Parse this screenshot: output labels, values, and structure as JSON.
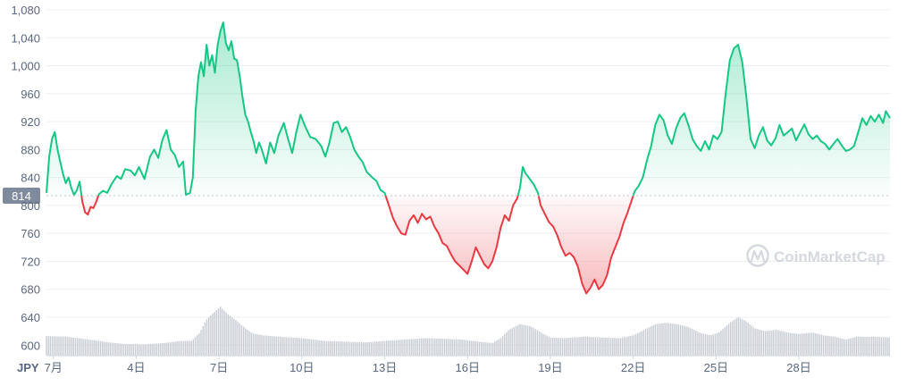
{
  "chart_data": {
    "type": "area",
    "title": "",
    "xlabel": "JPY",
    "ylabel": "",
    "ylim": [
      585,
      1080
    ],
    "yticks": [
      "1,080",
      "1,040",
      "1,000",
      "960",
      "920",
      "880",
      "840",
      "800",
      "760",
      "720",
      "680",
      "640",
      "600"
    ],
    "ytick_values": [
      1080,
      1040,
      1000,
      960,
      920,
      880,
      840,
      800,
      760,
      720,
      680,
      640,
      600
    ],
    "xlim": [
      0.75,
      31.3
    ],
    "xtick_labels": [
      "7月",
      "4日",
      "7日",
      "10日",
      "13日",
      "16日",
      "19日",
      "22日",
      "25日",
      "28日"
    ],
    "xtick_values": [
      1,
      4,
      7,
      10,
      13,
      16,
      19,
      22,
      25,
      28
    ],
    "baseline_value": 814,
    "baseline_label": "814",
    "grid": true,
    "colors": {
      "up": "#16c784",
      "down": "#ea3943",
      "volume": "#c7cbd3",
      "grid": "#eeeff2",
      "text": "#58667e",
      "baseline_badge": "#808a9d"
    },
    "price_series": {
      "name": "",
      "points": [
        [
          0.75,
          818
        ],
        [
          0.85,
          870
        ],
        [
          0.95,
          895
        ],
        [
          1.05,
          905
        ],
        [
          1.15,
          880
        ],
        [
          1.25,
          862
        ],
        [
          1.35,
          845
        ],
        [
          1.45,
          832
        ],
        [
          1.55,
          840
        ],
        [
          1.65,
          825
        ],
        [
          1.75,
          815
        ],
        [
          1.85,
          822
        ],
        [
          1.95,
          834
        ],
        [
          2.05,
          805
        ],
        [
          2.15,
          790
        ],
        [
          2.25,
          787
        ],
        [
          2.35,
          798
        ],
        [
          2.45,
          796
        ],
        [
          2.55,
          805
        ],
        [
          2.65,
          816
        ],
        [
          2.8,
          821
        ],
        [
          2.95,
          818
        ],
        [
          3.1,
          830
        ],
        [
          3.3,
          842
        ],
        [
          3.45,
          838
        ],
        [
          3.6,
          852
        ],
        [
          3.8,
          850
        ],
        [
          3.95,
          843
        ],
        [
          4.1,
          855
        ],
        [
          4.3,
          838
        ],
        [
          4.5,
          870
        ],
        [
          4.65,
          880
        ],
        [
          4.8,
          868
        ],
        [
          4.95,
          894
        ],
        [
          5.1,
          908
        ],
        [
          5.25,
          880
        ],
        [
          5.4,
          872
        ],
        [
          5.55,
          855
        ],
        [
          5.7,
          863
        ],
        [
          5.8,
          815
        ],
        [
          5.95,
          818
        ],
        [
          6.05,
          840
        ],
        [
          6.15,
          935
        ],
        [
          6.25,
          985
        ],
        [
          6.35,
          1005
        ],
        [
          6.45,
          985
        ],
        [
          6.55,
          1030
        ],
        [
          6.65,
          1000
        ],
        [
          6.75,
          1015
        ],
        [
          6.85,
          990
        ],
        [
          6.95,
          1030
        ],
        [
          7.05,
          1050
        ],
        [
          7.15,
          1062
        ],
        [
          7.25,
          1032
        ],
        [
          7.35,
          1022
        ],
        [
          7.45,
          1035
        ],
        [
          7.55,
          1010
        ],
        [
          7.65,
          1008
        ],
        [
          7.75,
          985
        ],
        [
          7.85,
          955
        ],
        [
          7.95,
          930
        ],
        [
          8.05,
          920
        ],
        [
          8.15,
          905
        ],
        [
          8.25,
          892
        ],
        [
          8.35,
          875
        ],
        [
          8.45,
          890
        ],
        [
          8.55,
          880
        ],
        [
          8.7,
          860
        ],
        [
          8.85,
          890
        ],
        [
          9.0,
          875
        ],
        [
          9.15,
          900
        ],
        [
          9.35,
          918
        ],
        [
          9.5,
          895
        ],
        [
          9.65,
          875
        ],
        [
          9.8,
          905
        ],
        [
          9.95,
          930
        ],
        [
          10.1,
          915
        ],
        [
          10.3,
          898
        ],
        [
          10.5,
          895
        ],
        [
          10.7,
          885
        ],
        [
          10.85,
          870
        ],
        [
          11.0,
          890
        ],
        [
          11.15,
          918
        ],
        [
          11.3,
          920
        ],
        [
          11.45,
          905
        ],
        [
          11.6,
          912
        ],
        [
          11.75,
          898
        ],
        [
          11.9,
          880
        ],
        [
          12.05,
          870
        ],
        [
          12.2,
          862
        ],
        [
          12.35,
          848
        ],
        [
          12.55,
          840
        ],
        [
          12.7,
          835
        ],
        [
          12.85,
          822
        ],
        [
          13.0,
          818
        ],
        [
          13.15,
          800
        ],
        [
          13.3,
          782
        ],
        [
          13.45,
          770
        ],
        [
          13.6,
          760
        ],
        [
          13.75,
          758
        ],
        [
          13.9,
          778
        ],
        [
          14.05,
          786
        ],
        [
          14.2,
          775
        ],
        [
          14.35,
          788
        ],
        [
          14.5,
          780
        ],
        [
          14.65,
          784
        ],
        [
          14.8,
          770
        ],
        [
          14.95,
          760
        ],
        [
          15.1,
          746
        ],
        [
          15.25,
          742
        ],
        [
          15.4,
          730
        ],
        [
          15.55,
          720
        ],
        [
          15.7,
          714
        ],
        [
          15.85,
          708
        ],
        [
          16.0,
          702
        ],
        [
          16.15,
          720
        ],
        [
          16.3,
          740
        ],
        [
          16.45,
          728
        ],
        [
          16.6,
          716
        ],
        [
          16.75,
          710
        ],
        [
          16.9,
          720
        ],
        [
          17.05,
          740
        ],
        [
          17.2,
          768
        ],
        [
          17.35,
          786
        ],
        [
          17.5,
          778
        ],
        [
          17.65,
          800
        ],
        [
          17.8,
          810
        ],
        [
          17.9,
          825
        ],
        [
          18.0,
          855
        ],
        [
          18.1,
          846
        ],
        [
          18.25,
          838
        ],
        [
          18.4,
          830
        ],
        [
          18.55,
          818
        ],
        [
          18.65,
          800
        ],
        [
          18.8,
          788
        ],
        [
          18.95,
          776
        ],
        [
          19.1,
          770
        ],
        [
          19.25,
          757
        ],
        [
          19.4,
          740
        ],
        [
          19.55,
          728
        ],
        [
          19.7,
          732
        ],
        [
          19.85,
          726
        ],
        [
          20.0,
          712
        ],
        [
          20.15,
          688
        ],
        [
          20.3,
          674
        ],
        [
          20.45,
          682
        ],
        [
          20.6,
          694
        ],
        [
          20.75,
          680
        ],
        [
          20.9,
          686
        ],
        [
          21.05,
          700
        ],
        [
          21.2,
          725
        ],
        [
          21.35,
          740
        ],
        [
          21.5,
          755
        ],
        [
          21.65,
          775
        ],
        [
          21.8,
          790
        ],
        [
          21.95,
          808
        ],
        [
          22.05,
          820
        ],
        [
          22.2,
          828
        ],
        [
          22.35,
          840
        ],
        [
          22.5,
          865
        ],
        [
          22.65,
          885
        ],
        [
          22.8,
          915
        ],
        [
          22.95,
          930
        ],
        [
          23.1,
          922
        ],
        [
          23.25,
          900
        ],
        [
          23.4,
          888
        ],
        [
          23.55,
          910
        ],
        [
          23.7,
          925
        ],
        [
          23.85,
          932
        ],
        [
          24.0,
          915
        ],
        [
          24.15,
          895
        ],
        [
          24.3,
          885
        ],
        [
          24.45,
          878
        ],
        [
          24.6,
          892
        ],
        [
          24.75,
          880
        ],
        [
          24.9,
          900
        ],
        [
          25.05,
          895
        ],
        [
          25.2,
          905
        ],
        [
          25.35,
          960
        ],
        [
          25.5,
          1008
        ],
        [
          25.65,
          1025
        ],
        [
          25.8,
          1030
        ],
        [
          25.95,
          1005
        ],
        [
          26.1,
          955
        ],
        [
          26.25,
          895
        ],
        [
          26.4,
          882
        ],
        [
          26.55,
          900
        ],
        [
          26.7,
          912
        ],
        [
          26.85,
          893
        ],
        [
          27.0,
          886
        ],
        [
          27.15,
          896
        ],
        [
          27.3,
          915
        ],
        [
          27.45,
          900
        ],
        [
          27.6,
          905
        ],
        [
          27.75,
          910
        ],
        [
          27.9,
          893
        ],
        [
          28.05,
          905
        ],
        [
          28.2,
          916
        ],
        [
          28.35,
          902
        ],
        [
          28.5,
          895
        ],
        [
          28.65,
          900
        ],
        [
          28.8,
          892
        ],
        [
          28.95,
          888
        ],
        [
          29.1,
          880
        ],
        [
          29.25,
          888
        ],
        [
          29.4,
          895
        ],
        [
          29.55,
          886
        ],
        [
          29.7,
          878
        ],
        [
          29.85,
          880
        ],
        [
          30.0,
          885
        ],
        [
          30.15,
          905
        ],
        [
          30.3,
          925
        ],
        [
          30.45,
          915
        ],
        [
          30.6,
          928
        ],
        [
          30.75,
          920
        ],
        [
          30.9,
          930
        ],
        [
          31.05,
          918
        ],
        [
          31.15,
          935
        ],
        [
          31.3,
          925
        ]
      ]
    },
    "volume_series": {
      "name": "",
      "points": [
        [
          0.75,
          613
        ],
        [
          1.5,
          612
        ],
        [
          2.5,
          607
        ],
        [
          3.0,
          604
        ],
        [
          3.5,
          602
        ],
        [
          4.2,
          601
        ],
        [
          5.0,
          603
        ],
        [
          5.6,
          606
        ],
        [
          6.0,
          606
        ],
        [
          6.3,
          618
        ],
        [
          6.55,
          637
        ],
        [
          6.85,
          648
        ],
        [
          7.05,
          655
        ],
        [
          7.3,
          645
        ],
        [
          7.6,
          636
        ],
        [
          7.9,
          626
        ],
        [
          8.2,
          617
        ],
        [
          8.6,
          614
        ],
        [
          9.2,
          612
        ],
        [
          10.0,
          610
        ],
        [
          10.8,
          606
        ],
        [
          11.5,
          605
        ],
        [
          12.3,
          604
        ],
        [
          13.0,
          606
        ],
        [
          13.7,
          608
        ],
        [
          14.5,
          610
        ],
        [
          15.3,
          609
        ],
        [
          15.8,
          608
        ],
        [
          16.4,
          605
        ],
        [
          16.9,
          603
        ],
        [
          17.2,
          610
        ],
        [
          17.5,
          622
        ],
        [
          17.9,
          630
        ],
        [
          18.3,
          627
        ],
        [
          18.7,
          617
        ],
        [
          19.0,
          611
        ],
        [
          19.5,
          610
        ],
        [
          20.2,
          612
        ],
        [
          20.9,
          611
        ],
        [
          21.5,
          610
        ],
        [
          22.0,
          614
        ],
        [
          22.4,
          622
        ],
        [
          22.8,
          630
        ],
        [
          23.2,
          632
        ],
        [
          23.6,
          630
        ],
        [
          24.0,
          626
        ],
        [
          24.4,
          618
        ],
        [
          24.8,
          614
        ],
        [
          25.1,
          618
        ],
        [
          25.5,
          632
        ],
        [
          25.8,
          640
        ],
        [
          26.1,
          634
        ],
        [
          26.4,
          624
        ],
        [
          26.8,
          620
        ],
        [
          27.2,
          622
        ],
        [
          27.6,
          618
        ],
        [
          28.0,
          616
        ],
        [
          28.5,
          618
        ],
        [
          28.9,
          614
        ],
        [
          29.3,
          612
        ],
        [
          29.7,
          608
        ],
        [
          30.1,
          612
        ],
        [
          30.6,
          612
        ],
        [
          31.3,
          611
        ]
      ]
    }
  },
  "watermark": {
    "text": "CoinMarketCap"
  }
}
